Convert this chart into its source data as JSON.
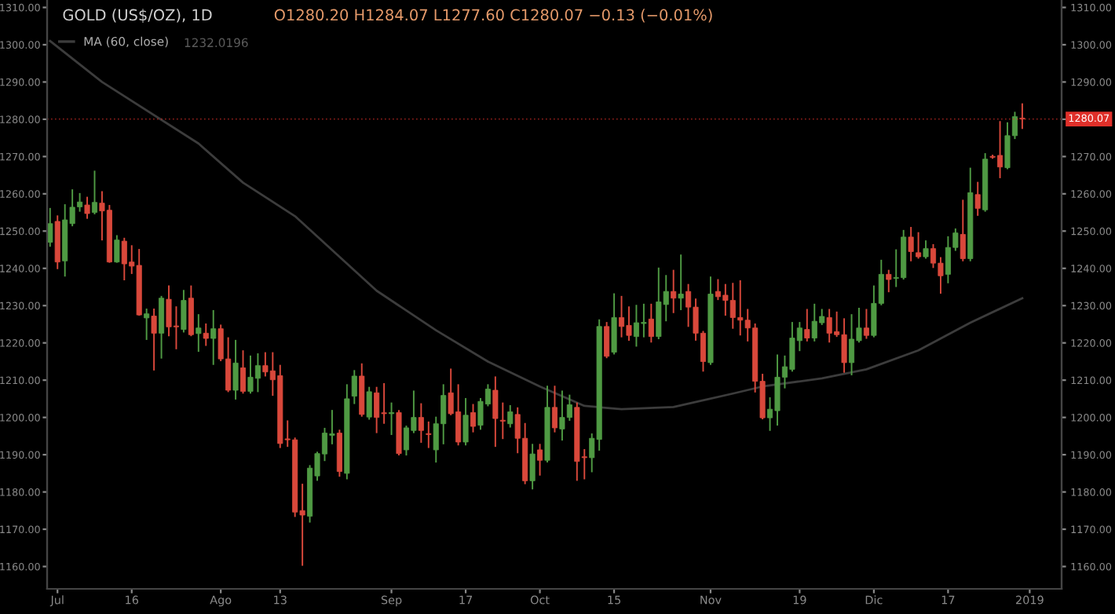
{
  "chart_data": {
    "type": "candlestick",
    "title": "GOLD (US$/OZ), 1D",
    "annotations": [
      "O1280.20 H1284.07 L1277.60 C1280.07 −0.13 (−0.01%)",
      "1232.0196"
    ],
    "categories": [
      null,
      "Jul",
      null,
      null,
      null,
      null,
      null,
      null,
      null,
      null,
      null,
      "16",
      null,
      null,
      null,
      null,
      null,
      null,
      null,
      null,
      null,
      null,
      null,
      "Ago",
      null,
      null,
      null,
      null,
      null,
      null,
      null,
      "13",
      null,
      null,
      null,
      null,
      null,
      null,
      null,
      null,
      null,
      null,
      null,
      null,
      null,
      null,
      "Sep",
      null,
      null,
      null,
      null,
      null,
      null,
      null,
      null,
      null,
      "17",
      null,
      null,
      null,
      null,
      null,
      null,
      null,
      null,
      null,
      "Oct",
      null,
      null,
      null,
      null,
      null,
      null,
      null,
      null,
      null,
      "15",
      null,
      null,
      null,
      null,
      null,
      null,
      null,
      null,
      null,
      null,
      null,
      null,
      "Nov",
      null,
      null,
      null,
      null,
      null,
      null,
      null,
      null,
      null,
      null,
      null,
      "19",
      null,
      null,
      null,
      null,
      null,
      null,
      null,
      null,
      null,
      "Dic",
      null,
      null,
      null,
      null,
      null,
      null,
      null,
      null,
      null,
      "17",
      null,
      null,
      null,
      null,
      null,
      null,
      null,
      null,
      null,
      null,
      "2019"
    ],
    "ohlc": [
      [
        1247,
        1256,
        1246,
        1252
      ],
      [
        1252.6,
        1254,
        1240,
        1241.7
      ],
      [
        1242,
        1257,
        1238,
        1253
      ],
      [
        1252,
        1261,
        1251.5,
        1256.4
      ],
      [
        1256.5,
        1260,
        1255.4,
        1257.8
      ],
      [
        1257,
        1259,
        1253.5,
        1254.7
      ],
      [
        1255,
        1266,
        1254.7,
        1257.7
      ],
      [
        1257.5,
        1260.5,
        1247.7,
        1255.4
      ],
      [
        1255.6,
        1256.8,
        1241.7,
        1241.7
      ],
      [
        1241.7,
        1248.7,
        1241.7,
        1247.6
      ],
      [
        1247.3,
        1248,
        1237,
        1241.2
      ],
      [
        1241.7,
        1246,
        1238.7,
        1240.6
      ],
      [
        1240.8,
        1245,
        1227.5,
        1227.5
      ],
      [
        1226.7,
        1229,
        1221,
        1227.8
      ],
      [
        1227.2,
        1229,
        1212.8,
        1222.6
      ],
      [
        1222.6,
        1232.4,
        1216,
        1232
      ],
      [
        1231.7,
        1235.2,
        1222,
        1224.3
      ],
      [
        1224.5,
        1229.6,
        1218.5,
        1224.3
      ],
      [
        1223.6,
        1234,
        1223,
        1231.4
      ],
      [
        1232,
        1235.2,
        1222,
        1222.2
      ],
      [
        1222.5,
        1227.5,
        1217.8,
        1224
      ],
      [
        1222.6,
        1225,
        1219.4,
        1221.2
      ],
      [
        1221.2,
        1228.6,
        1214.3,
        1223.8
      ],
      [
        1223.8,
        1224.7,
        1215.3,
        1215.7
      ],
      [
        1215.7,
        1221.3,
        1207,
        1207.3
      ],
      [
        1207.3,
        1220.6,
        1205,
        1214.6
      ],
      [
        1213.3,
        1217.8,
        1206.6,
        1207
      ],
      [
        1207,
        1216.4,
        1206.6,
        1210.8
      ],
      [
        1210.5,
        1217,
        1207,
        1213.9
      ],
      [
        1213.9,
        1217.3,
        1211.2,
        1212.2
      ],
      [
        1212.5,
        1217.3,
        1206,
        1210.1
      ],
      [
        1211.2,
        1213.9,
        1192,
        1193
      ],
      [
        1194.2,
        1199,
        1192.3,
        1194
      ],
      [
        1194,
        1194.4,
        1173.5,
        1174.6
      ],
      [
        1175,
        1182,
        1160.4,
        1173.8
      ],
      [
        1173.5,
        1187,
        1172,
        1186.4
      ],
      [
        1184.3,
        1190.6,
        1183.2,
        1190.3
      ],
      [
        1190.2,
        1197,
        1188.5,
        1195.8
      ],
      [
        1195.2,
        1201.8,
        1193,
        1195.6
      ],
      [
        1195.8,
        1196.5,
        1184.3,
        1185.5
      ],
      [
        1185,
        1208.7,
        1183.6,
        1205
      ],
      [
        1205.7,
        1212.5,
        1203.8,
        1211.1
      ],
      [
        1211.1,
        1214.3,
        1200.4,
        1200.8
      ],
      [
        1200.1,
        1208,
        1199.6,
        1206.9
      ],
      [
        1206.6,
        1208,
        1196,
        1200
      ],
      [
        1201.2,
        1209,
        1198.5,
        1201
      ],
      [
        1201,
        1203.8,
        1195.5,
        1201.3
      ],
      [
        1201.3,
        1201.8,
        1190,
        1190.3
      ],
      [
        1191.3,
        1197.6,
        1190,
        1197.2
      ],
      [
        1196.5,
        1207,
        1196,
        1200
      ],
      [
        1200,
        1203.6,
        1193.4,
        1196.5
      ],
      [
        1195.6,
        1198.7,
        1192,
        1195.4
      ],
      [
        1191.3,
        1200,
        1188.1,
        1198.3
      ],
      [
        1198.3,
        1208.7,
        1193,
        1205.9
      ],
      [
        1206.6,
        1212.9,
        1200.8,
        1201
      ],
      [
        1201.5,
        1208.7,
        1192.7,
        1193.4
      ],
      [
        1193.4,
        1205,
        1192.7,
        1200.6
      ],
      [
        1201.3,
        1203.4,
        1196.2,
        1197.6
      ],
      [
        1197.9,
        1205,
        1196.9,
        1204.3
      ],
      [
        1203.6,
        1208.7,
        1203.2,
        1207.6
      ],
      [
        1207.3,
        1210.8,
        1192.3,
        1199.7
      ],
      [
        1199.2,
        1203.8,
        1194.4,
        1199
      ],
      [
        1198.3,
        1203.1,
        1197.5,
        1201.5
      ],
      [
        1200.8,
        1202.5,
        1190.6,
        1194.4
      ],
      [
        1194.4,
        1198.3,
        1182.3,
        1183
      ],
      [
        1183,
        1192.7,
        1180.9,
        1190.2
      ],
      [
        1191.3,
        1192.7,
        1184.6,
        1188.5
      ],
      [
        1188.5,
        1208.3,
        1188.1,
        1202.7
      ],
      [
        1202.7,
        1208.3,
        1196.2,
        1197.2
      ],
      [
        1196.9,
        1207,
        1194,
        1200
      ],
      [
        1200,
        1205.9,
        1199.3,
        1203.4
      ],
      [
        1202.7,
        1203.8,
        1183.2,
        1188.2
      ],
      [
        1189.4,
        1191.3,
        1183.6,
        1189.2
      ],
      [
        1189.2,
        1195.5,
        1185.5,
        1194.4
      ],
      [
        1194.1,
        1226.1,
        1191.3,
        1224.4
      ],
      [
        1224.4,
        1225.4,
        1216.1,
        1216.4
      ],
      [
        1217.5,
        1233.1,
        1217.1,
        1226.8
      ],
      [
        1226.8,
        1232.4,
        1221.7,
        1224.4
      ],
      [
        1224.7,
        1229.6,
        1220.8,
        1222
      ],
      [
        1221.7,
        1230,
        1219.2,
        1225.4
      ],
      [
        1225.2,
        1230.3,
        1221.7,
        1225.5
      ],
      [
        1226.4,
        1230.3,
        1220.3,
        1221.7
      ],
      [
        1221.7,
        1240,
        1221.2,
        1231
      ],
      [
        1230.3,
        1238,
        1226,
        1233.8
      ],
      [
        1233.8,
        1239.4,
        1228.2,
        1232
      ],
      [
        1232,
        1243.5,
        1229,
        1233.1
      ],
      [
        1233.8,
        1235.6,
        1224.5,
        1229.6
      ],
      [
        1229.6,
        1231.7,
        1220.8,
        1222.6
      ],
      [
        1222.6,
        1223,
        1212.5,
        1215
      ],
      [
        1214.7,
        1237.6,
        1214.3,
        1233.1
      ],
      [
        1233.8,
        1236.9,
        1231.7,
        1232.4
      ],
      [
        1232.8,
        1235.6,
        1227.5,
        1231.4
      ],
      [
        1231.4,
        1235.9,
        1224,
        1226.8
      ],
      [
        1226.8,
        1236.6,
        1222.2,
        1226.1
      ],
      [
        1226.1,
        1228.9,
        1220.6,
        1224
      ],
      [
        1224,
        1225,
        1206.9,
        1209.7
      ],
      [
        1209.7,
        1211.5,
        1199.7,
        1199.9
      ],
      [
        1199.9,
        1205.2,
        1196.6,
        1202.2
      ],
      [
        1201.8,
        1216.7,
        1198,
        1210.8
      ],
      [
        1210.8,
        1216.4,
        1208,
        1213.6
      ],
      [
        1212.9,
        1225.4,
        1212.5,
        1221.3
      ],
      [
        1220.6,
        1225.4,
        1218,
        1224
      ],
      [
        1223.6,
        1228.9,
        1220.6,
        1221.3
      ],
      [
        1221.3,
        1230.3,
        1220.6,
        1225.8
      ],
      [
        1225.4,
        1228.9,
        1225,
        1227.1
      ],
      [
        1226.8,
        1228.9,
        1220.3,
        1222.6
      ],
      [
        1223,
        1228.2,
        1221.8,
        1222.2
      ],
      [
        1222.2,
        1226.4,
        1212.2,
        1214.7
      ],
      [
        1214.7,
        1227.5,
        1211.5,
        1221
      ],
      [
        1220.6,
        1229.2,
        1220.3,
        1224
      ],
      [
        1224,
        1228.9,
        1221.3,
        1222
      ],
      [
        1222,
        1235.2,
        1221.7,
        1230.6
      ],
      [
        1230.6,
        1242.1,
        1230.3,
        1238.4
      ],
      [
        1238.4,
        1239.4,
        1233.8,
        1237
      ],
      [
        1237.3,
        1244.9,
        1235.2,
        1237.5
      ],
      [
        1237.5,
        1250.1,
        1237.2,
        1248.4
      ],
      [
        1248.4,
        1250.9,
        1242.1,
        1244.5
      ],
      [
        1244.2,
        1249.5,
        1242.8,
        1243.1
      ],
      [
        1243.1,
        1247.3,
        1242.8,
        1245.3
      ],
      [
        1245.3,
        1246.3,
        1240.3,
        1241.4
      ],
      [
        1241.4,
        1242.8,
        1233.4,
        1238
      ],
      [
        1238.4,
        1248.4,
        1236.2,
        1245.6
      ],
      [
        1245.6,
        1250.5,
        1244.9,
        1249.5
      ],
      [
        1249.1,
        1258.2,
        1242.1,
        1242.6
      ],
      [
        1242.6,
        1266.8,
        1242.1,
        1260.3
      ],
      [
        1259.8,
        1263,
        1254.3,
        1256.1
      ],
      [
        1255.7,
        1270.7,
        1255.4,
        1269.3
      ],
      [
        1270,
        1270.3,
        1269.6,
        1269.8
      ],
      [
        1270.3,
        1279.3,
        1264.4,
        1267.2
      ],
      [
        1267,
        1279,
        1266.8,
        1275.6
      ],
      [
        1275.6,
        1281.8,
        1274.9,
        1280.7
      ],
      [
        1280.2,
        1284.07,
        1277.6,
        1280.07
      ],
      null
    ],
    "colors": [
      "#4f9a43",
      "#d9483b",
      "#4f9a43",
      "#4f9a43",
      "#4f9a43",
      "#d9483b",
      "#4f9a43",
      "#d9483b",
      "#d9483b",
      "#4f9a43",
      "#d9483b",
      "#d9483b",
      "#d9483b",
      "#4f9a43",
      "#d9483b",
      "#4f9a43",
      "#d9483b",
      "#d9483b",
      "#4f9a43",
      "#d9483b",
      "#4f9a43",
      "#d9483b",
      "#4f9a43",
      "#d9483b",
      "#d9483b",
      "#4f9a43",
      "#d9483b",
      "#4f9a43",
      "#4f9a43",
      "#d9483b",
      "#d9483b",
      "#d9483b",
      "#d9483b",
      "#d9483b",
      "#d9483b",
      "#4f9a43",
      "#4f9a43",
      "#4f9a43",
      "#4f9a43",
      "#d9483b",
      "#4f9a43",
      "#4f9a43",
      "#d9483b",
      "#4f9a43",
      "#d9483b",
      "#d9483b",
      "#4f9a43",
      "#d9483b",
      "#4f9a43",
      "#4f9a43",
      "#d9483b",
      "#d9483b",
      "#4f9a43",
      "#4f9a43",
      "#d9483b",
      "#d9483b",
      "#4f9a43",
      "#d9483b",
      "#4f9a43",
      "#4f9a43",
      "#d9483b",
      "#d9483b",
      "#4f9a43",
      "#d9483b",
      "#d9483b",
      "#4f9a43",
      "#d9483b",
      "#4f9a43",
      "#d9483b",
      "#4f9a43",
      "#4f9a43",
      "#d9483b",
      "#d9483b",
      "#4f9a43",
      "#4f9a43",
      "#d9483b",
      "#4f9a43",
      "#d9483b",
      "#d9483b",
      "#4f9a43",
      "#4f9a43",
      "#d9483b",
      "#4f9a43",
      "#4f9a43",
      "#d9483b",
      "#4f9a43",
      "#d9483b",
      "#d9483b",
      "#d9483b",
      "#4f9a43",
      "#d9483b",
      "#d9483b",
      "#d9483b",
      "#d9483b",
      "#d9483b",
      "#d9483b",
      "#d9483b",
      "#4f9a43",
      "#4f9a43",
      "#4f9a43",
      "#4f9a43",
      "#4f9a43",
      "#d9483b",
      "#4f9a43",
      "#4f9a43",
      "#d9483b",
      "#d9483b",
      "#d9483b",
      "#4f9a43",
      "#4f9a43",
      "#d9483b",
      "#4f9a43",
      "#4f9a43",
      "#d9483b",
      "#4f9a43",
      "#4f9a43",
      "#d9483b",
      "#d9483b",
      "#4f9a43",
      "#d9483b",
      "#d9483b",
      "#4f9a43",
      "#4f9a43",
      "#d9483b",
      "#4f9a43",
      "#d9483b",
      "#4f9a43",
      "#d9483b",
      "#d9483b",
      "#4f9a43",
      "#4f9a43",
      "#d9483b",
      null
    ],
    "series": [
      {
        "type": "line",
        "name": "MA (60, close)",
        "color": "#3c3c3c",
        "values": [
          1301,
          null,
          null,
          null,
          null,
          null,
          null,
          1290,
          null,
          null,
          null,
          null,
          null,
          null,
          null,
          null,
          null,
          null,
          null,
          null,
          1273.5,
          null,
          null,
          null,
          null,
          null,
          1263,
          null,
          null,
          null,
          null,
          null,
          null,
          1254,
          null,
          null,
          null,
          null,
          null,
          null,
          null,
          null,
          null,
          null,
          1234,
          null,
          null,
          null,
          null,
          null,
          null,
          null,
          1223.4,
          null,
          null,
          null,
          null,
          null,
          null,
          1215,
          null,
          null,
          null,
          null,
          null,
          null,
          1208.3,
          null,
          null,
          null,
          null,
          null,
          1203.1,
          null,
          null,
          null,
          null,
          1202.2,
          null,
          null,
          null,
          null,
          null,
          null,
          1202.8,
          null,
          null,
          null,
          null,
          null,
          null,
          null,
          1206.4,
          null,
          null,
          null,
          1208.3,
          null,
          null,
          null,
          null,
          null,
          null,
          null,
          1210.5,
          null,
          null,
          null,
          null,
          null,
          1212.9,
          null,
          null,
          null,
          null,
          null,
          null,
          1218,
          null,
          null,
          null,
          null,
          null,
          null,
          1225.4,
          null,
          null,
          null,
          null,
          null,
          null,
          1232,
          null
        ]
      }
    ],
    "legend": "top left",
    "ylim": [
      1154,
      1312
    ],
    "yticks": [
      {
        "value": 1160,
        "label": "1160.00"
      },
      {
        "value": 1170,
        "label": "1170.00"
      },
      {
        "value": 1180,
        "label": "1180.00"
      },
      {
        "value": 1190,
        "label": "1190.00"
      },
      {
        "value": 1200,
        "label": "1200.00"
      },
      {
        "value": 1210,
        "label": "1210.00"
      },
      {
        "value": 1220,
        "label": "1220.00"
      },
      {
        "value": 1230,
        "label": "1230.00"
      },
      {
        "value": 1240,
        "label": "1240.00"
      },
      {
        "value": 1250,
        "label": "1250.00"
      },
      {
        "value": 1260,
        "label": "1260.00"
      },
      {
        "value": 1270,
        "label": "1270.00"
      },
      {
        "value": 1280,
        "label": "1280.00"
      },
      {
        "value": 1290,
        "label": "1290.00"
      },
      {
        "value": 1300,
        "label": "1300.00"
      },
      {
        "value": 1310,
        "label": "1310.00"
      }
    ],
    "y2lim": [
      1154,
      1312
    ],
    "y2ticks": [
      {
        "value": 1160,
        "label": "1160.00"
      },
      {
        "value": 1170,
        "label": "1170.00"
      },
      {
        "value": 1180,
        "label": "1180.00"
      },
      {
        "value": 1190,
        "label": "1190.00"
      },
      {
        "value": 1200,
        "label": "1200.00"
      },
      {
        "value": 1210,
        "label": "1210.00"
      },
      {
        "value": 1220,
        "label": "1220.00"
      },
      {
        "value": 1230,
        "label": "1230.00"
      },
      {
        "value": 1240,
        "label": "1240.00"
      },
      {
        "value": 1250,
        "label": "1250.00"
      },
      {
        "value": 1260,
        "label": "1260.00"
      },
      {
        "value": 1270,
        "label": "1270.00"
      },
      {
        "value": 1280,
        "label": null
      },
      {
        "value": 1290,
        "label": "1290.00"
      },
      {
        "value": 1300,
        "label": "1300.00"
      },
      {
        "value": 1310,
        "label": "1310.00"
      }
    ],
    "ref_lines": [
      {
        "axis": "y2",
        "value": 1280.07,
        "label": "1280.07",
        "color": "#e0302a"
      }
    ]
  }
}
